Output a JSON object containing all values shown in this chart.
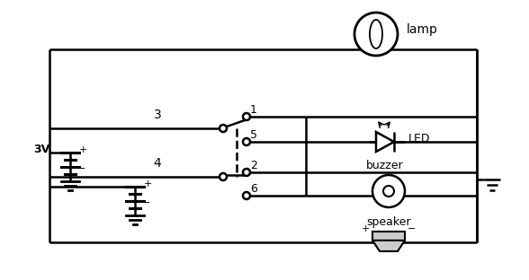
{
  "bg_color": "#ffffff",
  "lc": "#000000",
  "lw": 1.8,
  "figsize": [
    5.88,
    3.12
  ],
  "dpi": 100,
  "xlim": [
    0,
    588
  ],
  "ylim": [
    0,
    312
  ]
}
